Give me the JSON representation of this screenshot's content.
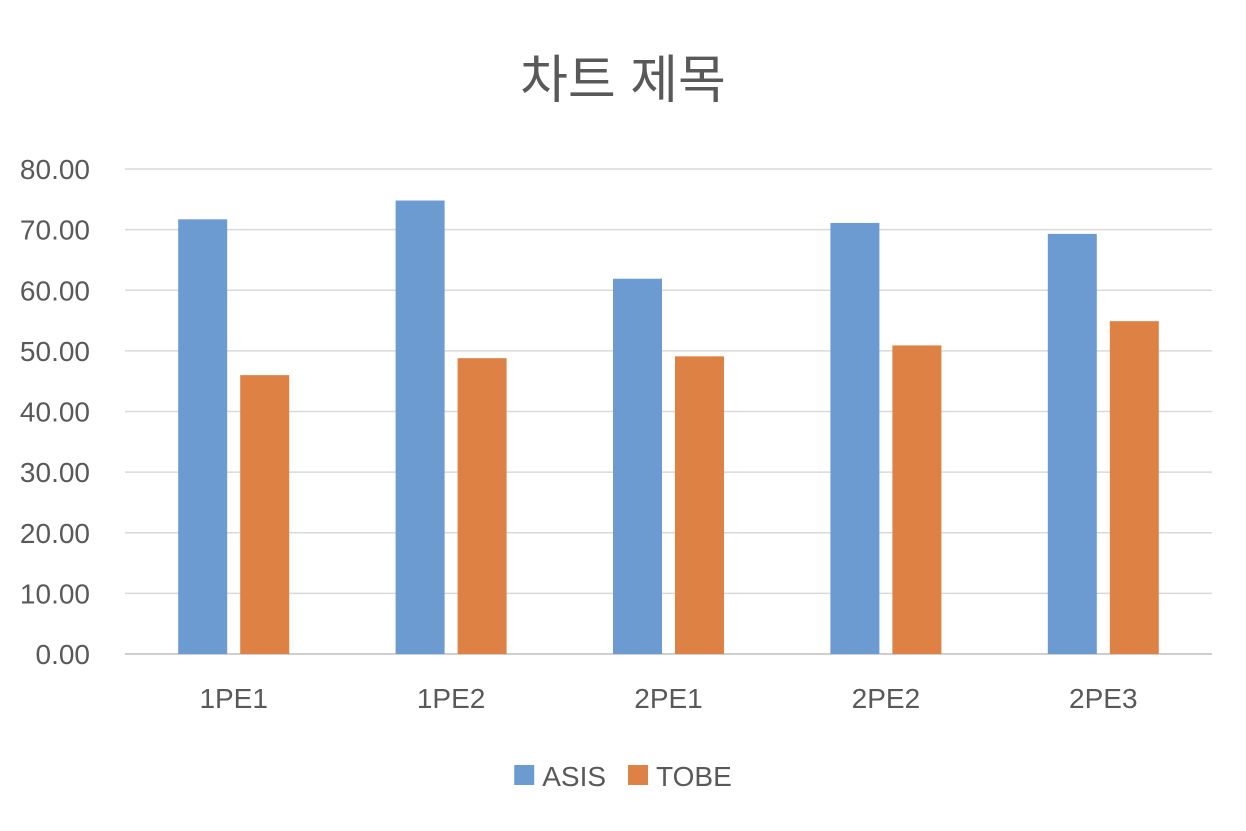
{
  "chart_data": {
    "type": "bar",
    "title": "차트 제목",
    "categories": [
      "1PE1",
      "1PE2",
      "2PE1",
      "2PE2",
      "2PE3"
    ],
    "series": [
      {
        "name": "ASIS",
        "color": "#6b9bd1",
        "values": [
          71.7,
          74.8,
          61.9,
          71.1,
          69.3
        ]
      },
      {
        "name": "TOBE",
        "color": "#dd8244",
        "values": [
          46.0,
          48.8,
          49.1,
          50.9,
          54.9
        ]
      }
    ],
    "ylim": [
      0,
      80
    ],
    "yticks": [
      "0.00",
      "10.00",
      "20.00",
      "30.00",
      "40.00",
      "50.00",
      "60.00",
      "70.00",
      "80.00"
    ],
    "grid": true,
    "legend": "bottom",
    "gridColor": "#d9d9d9",
    "axisColor": "#bfbfbf",
    "textColor": "#595959"
  }
}
